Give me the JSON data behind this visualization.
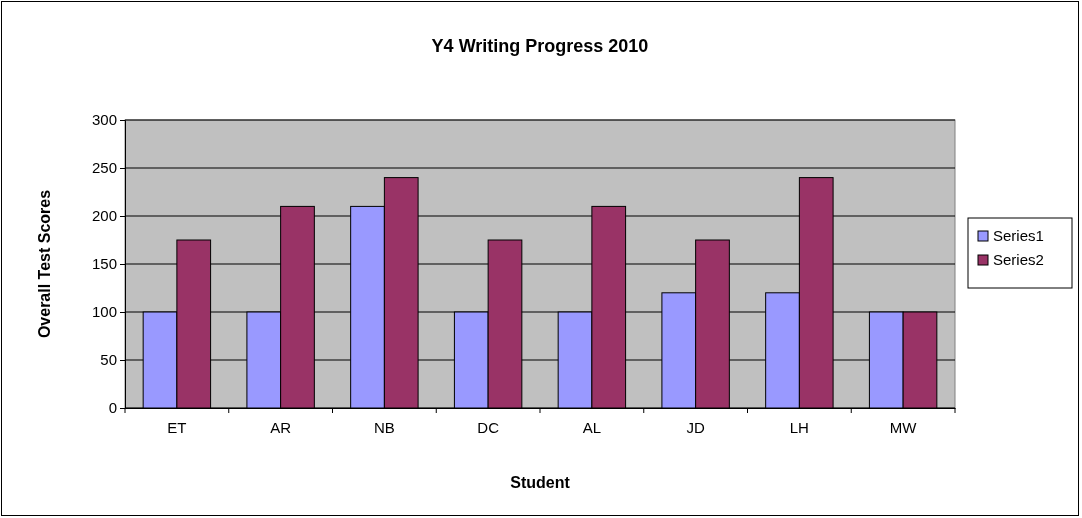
{
  "chart_data": {
    "type": "bar",
    "title": "Y4 Writing Progress 2010",
    "xlabel": "Student",
    "ylabel": "Overall Test Scores",
    "categories": [
      "ET",
      "AR",
      "NB",
      "DC",
      "AL",
      "JD",
      "LH",
      "MW"
    ],
    "series": [
      {
        "name": "Series1",
        "color": "#9999ff",
        "values": [
          100,
          100,
          210,
          100,
          100,
          120,
          120,
          100
        ]
      },
      {
        "name": "Series2",
        "color": "#993366",
        "values": [
          175,
          210,
          240,
          175,
          210,
          175,
          240,
          100
        ]
      }
    ],
    "ylim": [
      0,
      300
    ],
    "yticks": [
      0,
      50,
      100,
      150,
      200,
      250,
      300
    ],
    "grid": "y",
    "legend": "right"
  }
}
